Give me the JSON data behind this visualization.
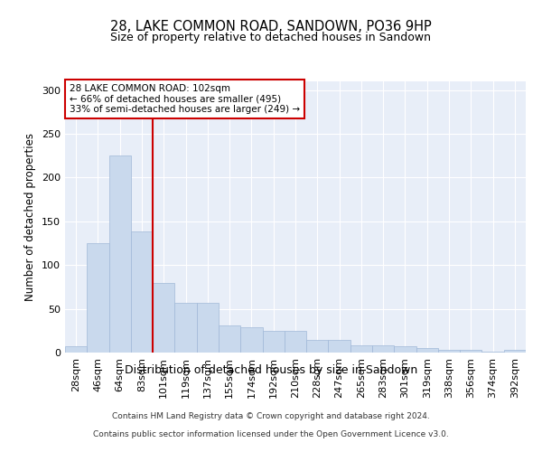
{
  "title": "28, LAKE COMMON ROAD, SANDOWN, PO36 9HP",
  "subtitle": "Size of property relative to detached houses in Sandown",
  "xlabel": "Distribution of detached houses by size in Sandown",
  "ylabel": "Number of detached properties",
  "bar_labels": [
    "28sqm",
    "46sqm",
    "64sqm",
    "83sqm",
    "101sqm",
    "119sqm",
    "137sqm",
    "155sqm",
    "174sqm",
    "192sqm",
    "210sqm",
    "228sqm",
    "247sqm",
    "265sqm",
    "283sqm",
    "301sqm",
    "319sqm",
    "338sqm",
    "356sqm",
    "374sqm",
    "392sqm"
  ],
  "bar_values": [
    7,
    125,
    225,
    138,
    80,
    57,
    57,
    31,
    29,
    25,
    25,
    14,
    14,
    8,
    8,
    7,
    5,
    3,
    3,
    1,
    3
  ],
  "bar_color": "#c9d9ed",
  "bar_edge_color": "#a0b8d8",
  "vline_x": 3.5,
  "vline_color": "#cc0000",
  "annotation_text": "28 LAKE COMMON ROAD: 102sqm\n← 66% of detached houses are smaller (495)\n33% of semi-detached houses are larger (249) →",
  "annotation_box_color": "#cc0000",
  "ylim": [
    0,
    310
  ],
  "bg_color": "#e8eef8",
  "footer_line1": "Contains HM Land Registry data © Crown copyright and database right 2024.",
  "footer_line2": "Contains public sector information licensed under the Open Government Licence v3.0."
}
